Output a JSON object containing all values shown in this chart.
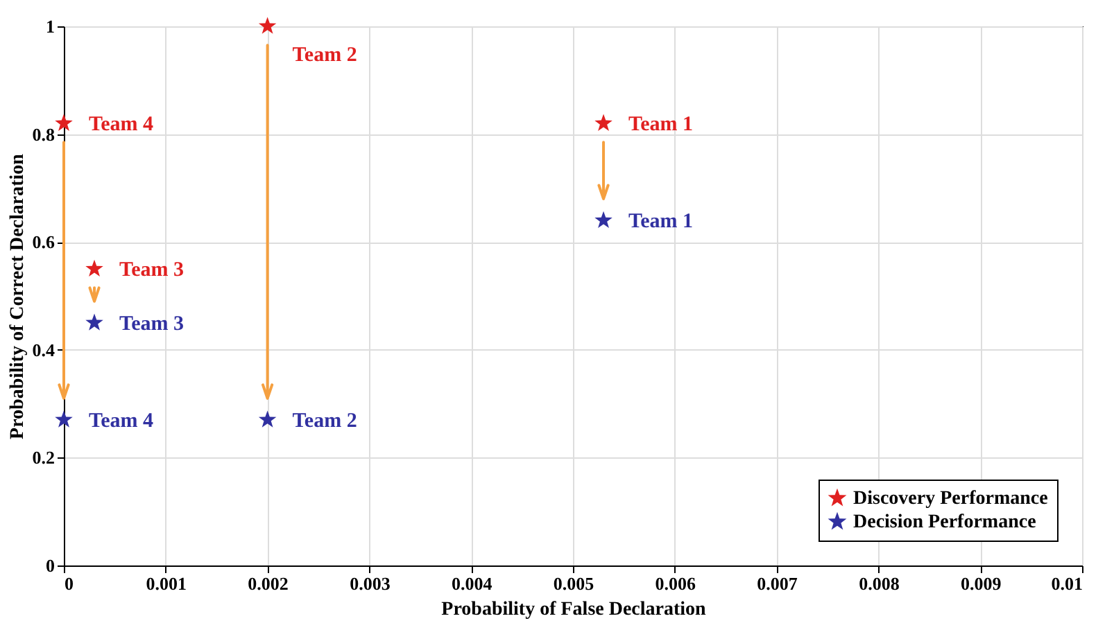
{
  "chart_data": {
    "type": "scatter",
    "xlabel": "Probability of False Declaration",
    "ylabel": "Probability of Correct Declaration",
    "x": [
      0.0053,
      0.002,
      0.0003,
      0
    ],
    "series": [
      {
        "name": "Discovery Performance",
        "color": "#e02020",
        "values": [
          0.82,
          1.0,
          0.55,
          0.82
        ],
        "value_labels": [
          "Team 1",
          "Team 2",
          "Team 3",
          "Team 4"
        ]
      },
      {
        "name": "Decision Performance",
        "color": "#3030a0",
        "values": [
          0.64,
          0.27,
          0.45,
          0.27
        ],
        "value_labels": [
          "Team 1",
          "Team 2",
          "Team 3",
          "Team 4"
        ]
      }
    ],
    "xlim": [
      0,
      0.01
    ],
    "xticks": [
      0,
      0.001,
      0.002,
      0.003,
      0.004,
      0.005,
      0.006,
      0.007,
      0.008,
      0.009,
      0.01
    ],
    "ylim": [
      0,
      1
    ],
    "yticks": [
      0,
      0.2,
      0.4,
      0.6,
      0.8,
      1
    ],
    "grid": true,
    "legend": "bottom right",
    "marker": "star"
  }
}
